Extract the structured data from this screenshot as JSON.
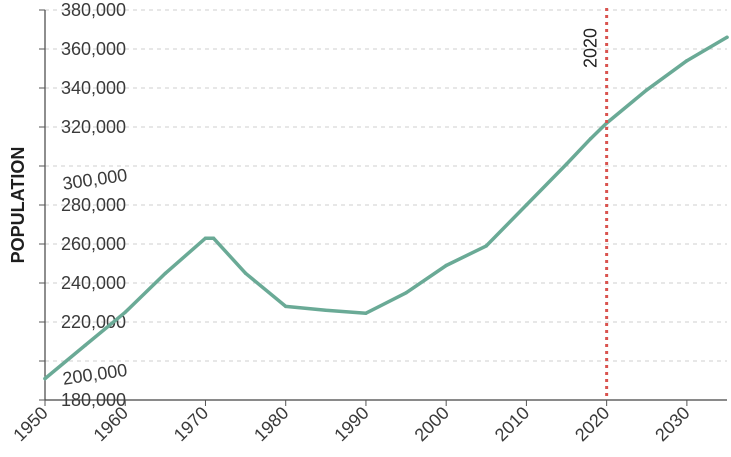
{
  "chart_data": {
    "type": "line",
    "ylabel": "POPULATION",
    "xlim": [
      1950,
      2035
    ],
    "ylim": [
      180000,
      380000
    ],
    "x_ticks": [
      1950,
      1960,
      1970,
      1980,
      1990,
      2000,
      2010,
      2020,
      2030
    ],
    "x_tick_labels": [
      "1950",
      "1960",
      "1970",
      "1980",
      "1990",
      "2000",
      "2010",
      "2020",
      "2030"
    ],
    "y_ticks": [
      180000,
      200000,
      220000,
      240000,
      260000,
      280000,
      300000,
      320000,
      340000,
      360000,
      380000
    ],
    "y_tick_labels": [
      "180,000",
      "200,000",
      "220,000",
      "240,000",
      "260,000",
      "280,000",
      "300,000",
      "320,000",
      "340,000",
      "360,000",
      "380,000"
    ],
    "grid": true,
    "series": [
      {
        "color": "#6aaa96",
        "x": [
          1950,
          1955,
          1960,
          1965,
          1970,
          1971,
          1975,
          1980,
          1985,
          1990,
          1995,
          2000,
          2005,
          2010,
          2015,
          2018,
          2020,
          2025,
          2030,
          2035
        ],
        "y": [
          191000,
          208000,
          225000,
          245000,
          263000,
          263000,
          245000,
          228000,
          226000,
          224500,
          235000,
          249000,
          259000,
          280000,
          301000,
          314000,
          322000,
          339000,
          354000,
          366000
        ]
      }
    ],
    "annotations": [
      {
        "type": "vline",
        "x": 2020,
        "label": "2020",
        "color": "#d9534f"
      }
    ]
  }
}
